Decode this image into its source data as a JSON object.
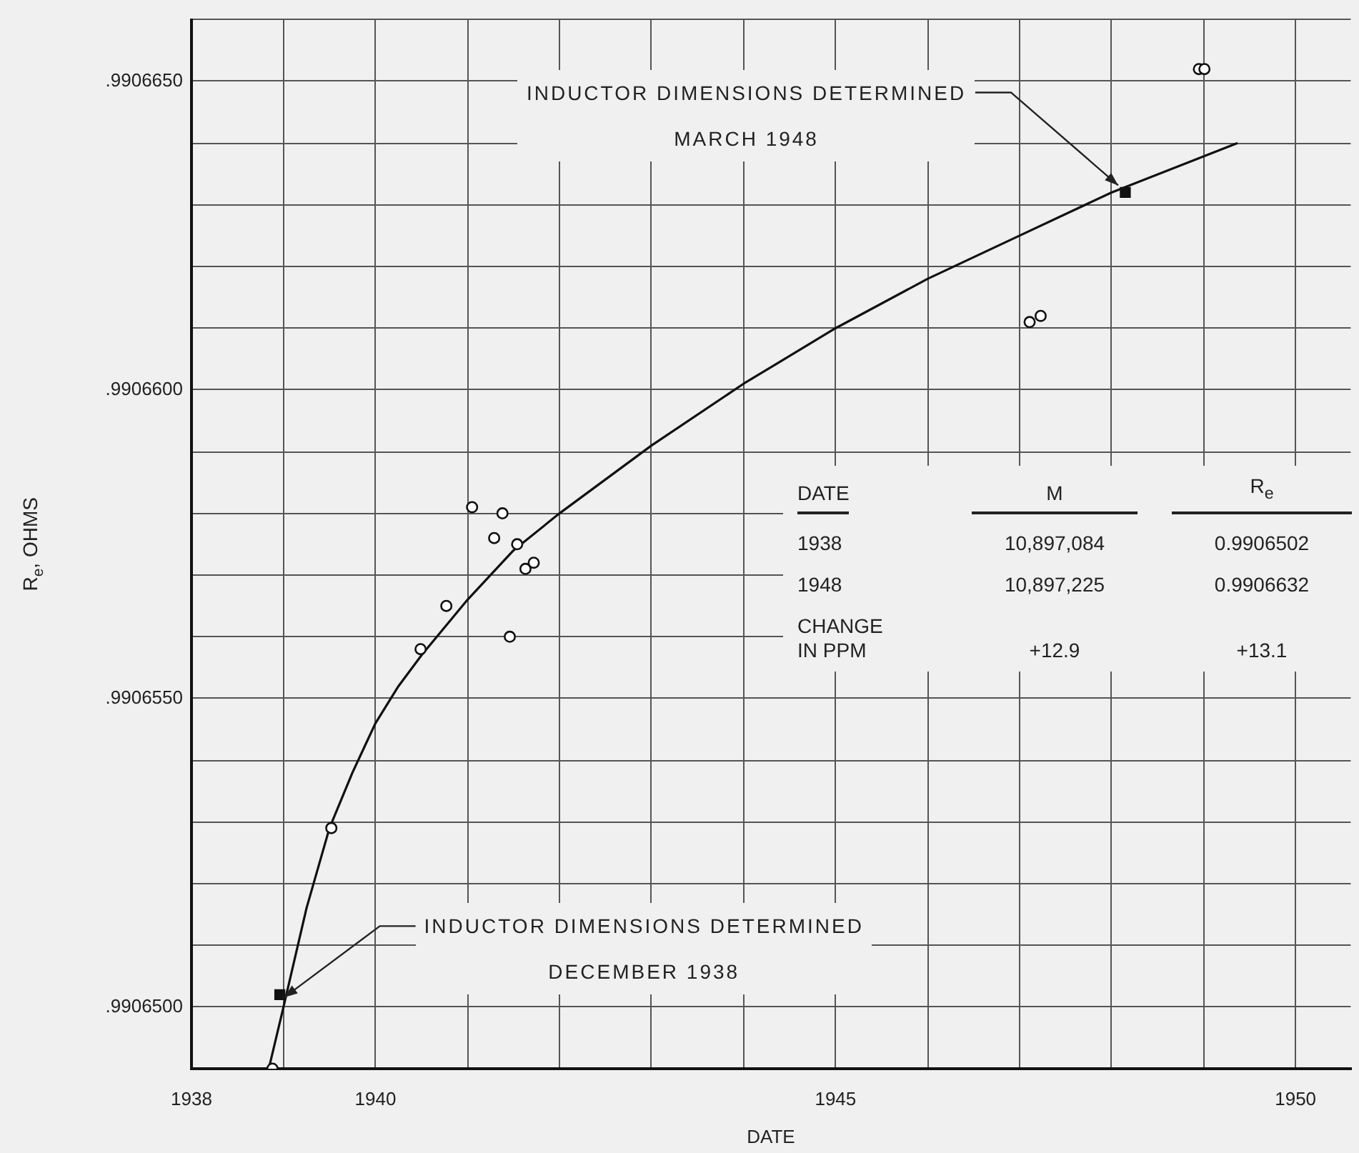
{
  "chart_data": {
    "type": "scatter",
    "xlabel": "DATE",
    "ylabel": "R$_{e}$, OHMS",
    "xlim": [
      1938,
      1950.6
    ],
    "xticks": [
      1938,
      {
        "value": 1939,
        "label": null
      },
      1940,
      {
        "value": 1941,
        "label": null
      },
      {
        "value": 1942,
        "label": null
      },
      {
        "value": 1943,
        "label": null
      },
      {
        "value": 1944,
        "label": null
      },
      1945,
      {
        "value": 1946,
        "label": null
      },
      {
        "value": 1947,
        "label": null
      },
      {
        "value": 1948,
        "label": null
      },
      {
        "value": 1949,
        "label": null
      },
      1950
    ],
    "ylim": [
      0.990649,
      0.990666
    ],
    "yticks": [
      {
        "value": 0.99065,
        "label": ".9906500"
      },
      {
        "value": 0.990651,
        "label": null
      },
      {
        "value": 0.990652,
        "label": null
      },
      {
        "value": 0.990653,
        "label": null
      },
      {
        "value": 0.990654,
        "label": null
      },
      {
        "value": 0.990655,
        "label": ".9906550"
      },
      {
        "value": 0.990656,
        "label": null
      },
      {
        "value": 0.990657,
        "label": null
      },
      {
        "value": 0.990658,
        "label": null
      },
      {
        "value": 0.990659,
        "label": null
      },
      {
        "value": 0.99066,
        "label": ".9906600"
      },
      {
        "value": 0.990661,
        "label": null
      },
      {
        "value": 0.990662,
        "label": null
      },
      {
        "value": 0.990663,
        "label": null
      },
      {
        "value": 0.990664,
        "label": null
      },
      {
        "value": 0.990665,
        "label": ".9906650"
      },
      {
        "value": 0.990666,
        "label": null
      }
    ],
    "grid": true,
    "series": [
      {
        "type": "line",
        "color": "#111111",
        "marker": "none",
        "line_style": "solid",
        "x": [
          1938.84,
          1939.0,
          1939.25,
          1939.5,
          1939.75,
          1940.0,
          1940.25,
          1940.5,
          1941.0,
          1941.5,
          1942.0,
          1943.0,
          1944.0,
          1945.0,
          1946.0,
          1947.0,
          1948.0,
          1949.37
        ],
        "values": [
          0.990649,
          0.99065,
          0.9906516,
          0.9906529,
          0.9906538,
          0.9906546,
          0.9906552,
          0.9906557,
          0.9906566,
          0.9906574,
          0.990658,
          0.9906591,
          0.9906601,
          0.990661,
          0.9906618,
          0.9906625,
          0.9906632,
          0.990664
        ]
      },
      {
        "type": "scatter",
        "color": "#111111",
        "marker": "circle",
        "x": [
          1938.88,
          1939.52,
          1940.49,
          1940.77,
          1941.05,
          1941.38,
          1941.29,
          1941.54,
          1941.63,
          1941.72,
          1941.46,
          1947.11,
          1947.23,
          1948.95,
          1949.01
        ],
        "values": [
          0.990649,
          0.9906529,
          0.9906558,
          0.9906565,
          0.9906581,
          0.990658,
          0.9906576,
          0.9906575,
          0.9906571,
          0.9906572,
          0.990656,
          0.9906611,
          0.9906612,
          0.9906652,
          0.9906652
        ]
      },
      {
        "type": "scatter",
        "color": "#111111",
        "marker": "square",
        "x": [
          1938.96,
          1948.15
        ],
        "values": [
          0.9906502,
          0.9906632
        ]
      }
    ],
    "annotations": [
      {
        "text": "INDUCTOR DIMENSIONS DETERMINED\nDECEMBER 1938",
        "x": 1938.96,
        "y": 0.9906502
      },
      {
        "text": "INDUCTOR DIMENSIONS DETERMINED\nMARCH 1948",
        "x": 1948.15,
        "y": 0.9906632
      },
      "DATE",
      "M",
      "R$_{e}$",
      "1938",
      "10,897,084",
      "0.9906502",
      "1948",
      "10,897,225",
      "0.9906632",
      "CHANGE\nIN PPM",
      "+12.9",
      "+13.1"
    ]
  }
}
